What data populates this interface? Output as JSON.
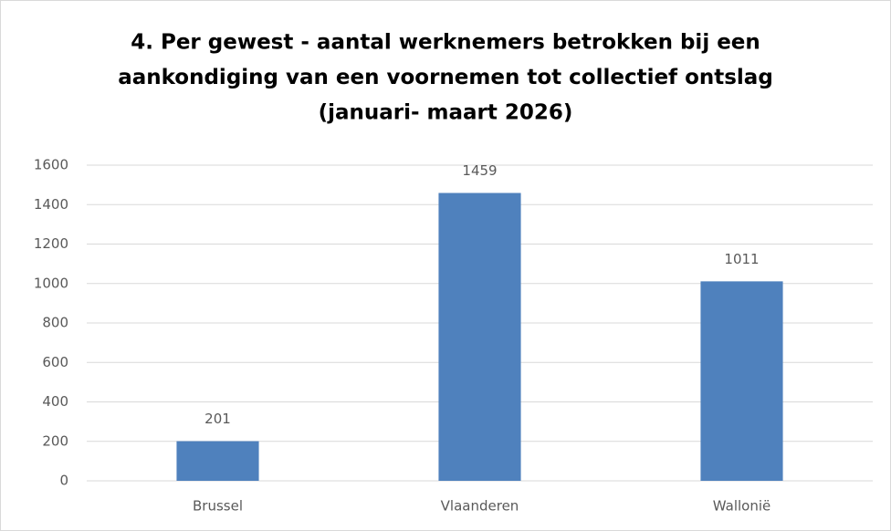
{
  "chart_data": {
    "type": "bar",
    "title": [
      "4. Per gewest - aantal werknemers betrokken bij een",
      "aankondiging van een voornemen tot collectief ontslag",
      "(januari- maart 2026)"
    ],
    "categories": [
      "Brussel",
      "Vlaanderen",
      "Wallonië"
    ],
    "values": [
      201,
      1459,
      1011
    ],
    "color": "#4f81bd",
    "ylim": [
      0,
      1600
    ],
    "yticks": [
      0,
      200,
      400,
      600,
      800,
      1000,
      1200,
      1400,
      1600
    ],
    "grid": true
  }
}
